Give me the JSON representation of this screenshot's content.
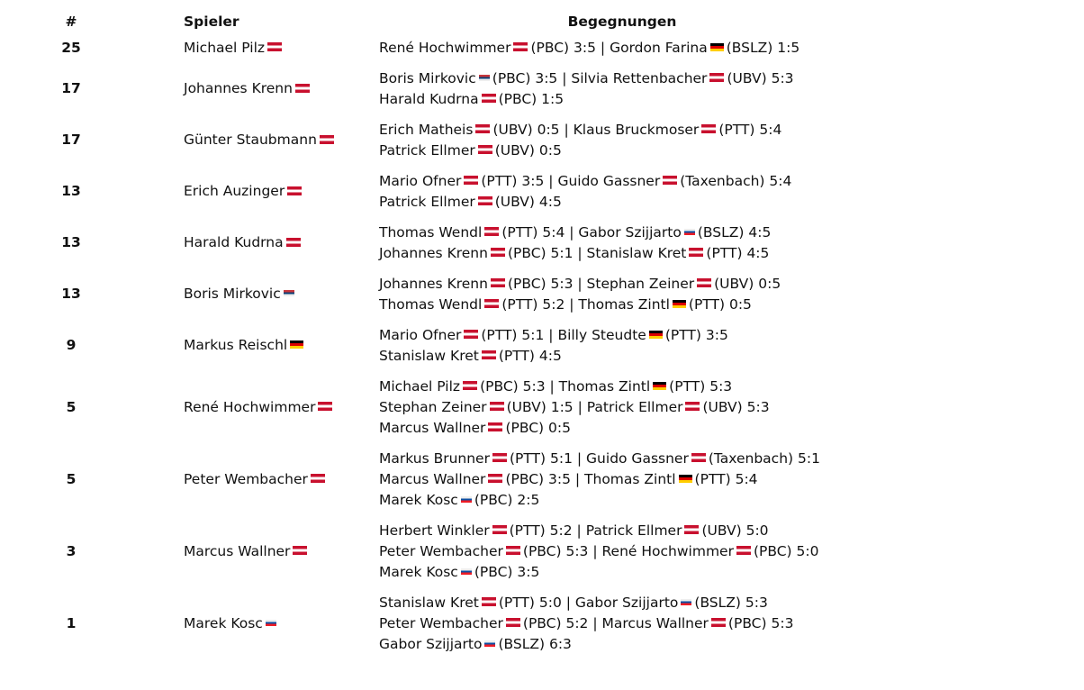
{
  "headers": {
    "rank": "#",
    "player": "Spieler",
    "matches": "Begegnungen"
  },
  "flag_colors": {
    "at": [
      "#c8102e",
      "#ffffff",
      "#c8102e"
    ],
    "de": [
      "#000000",
      "#dd0000",
      "#ffce00"
    ],
    "rs": [
      "#c6363c",
      "#0c4076",
      "#eeeeee"
    ],
    "sk": [
      "#eeeeee",
      "#0b4ea2",
      "#ee1c25"
    ]
  },
  "rows": [
    {
      "rank": "25",
      "name": "Michael Pilz",
      "flag": "at",
      "lines": [
        [
          {
            "name": "René Hochwimmer",
            "flag": "at",
            "club": "(PBC)",
            "score": "3:5"
          },
          {
            "name": "Gordon Farina",
            "flag": "de",
            "club": "(BSLZ)",
            "score": "1:5"
          }
        ]
      ]
    },
    {
      "rank": "17",
      "name": "Johannes Krenn",
      "flag": "at",
      "lines": [
        [
          {
            "name": "Boris Mirkovic",
            "flag": "rs",
            "club": "(PBC)",
            "score": "3:5"
          },
          {
            "name": "Silvia Rettenbacher",
            "flag": "at",
            "club": "(UBV)",
            "score": "5:3"
          }
        ],
        [
          {
            "name": "Harald Kudrna",
            "flag": "at",
            "club": "(PBC)",
            "score": "1:5"
          }
        ]
      ]
    },
    {
      "rank": "17",
      "name": "Günter Staubmann",
      "flag": "at",
      "lines": [
        [
          {
            "name": "Erich Matheis",
            "flag": "at",
            "club": "(UBV)",
            "score": "0:5"
          },
          {
            "name": "Klaus Bruckmoser",
            "flag": "at",
            "club": "(PTT)",
            "score": "5:4"
          }
        ],
        [
          {
            "name": "Patrick Ellmer",
            "flag": "at",
            "club": "(UBV)",
            "score": "0:5"
          }
        ]
      ]
    },
    {
      "rank": "13",
      "name": "Erich Auzinger",
      "flag": "at",
      "lines": [
        [
          {
            "name": "Mario Ofner",
            "flag": "at",
            "club": "(PTT)",
            "score": "3:5"
          },
          {
            "name": "Guido Gassner",
            "flag": "at",
            "club": "(Taxenbach)",
            "score": "5:4"
          }
        ],
        [
          {
            "name": "Patrick Ellmer",
            "flag": "at",
            "club": "(UBV)",
            "score": "4:5"
          }
        ]
      ]
    },
    {
      "rank": "13",
      "name": "Harald Kudrna",
      "flag": "at",
      "lines": [
        [
          {
            "name": "Thomas Wendl",
            "flag": "at",
            "club": "(PTT)",
            "score": "5:4"
          },
          {
            "name": "Gabor Szijjarto",
            "flag": "sk",
            "club": "(BSLZ)",
            "score": "4:5"
          }
        ],
        [
          {
            "name": "Johannes Krenn",
            "flag": "at",
            "club": "(PBC)",
            "score": "5:1"
          },
          {
            "name": "Stanislaw Kret",
            "flag": "at",
            "club": "(PTT)",
            "score": "4:5"
          }
        ]
      ]
    },
    {
      "rank": "13",
      "name": "Boris Mirkovic",
      "flag": "rs",
      "lines": [
        [
          {
            "name": "Johannes Krenn",
            "flag": "at",
            "club": "(PBC)",
            "score": "5:3"
          },
          {
            "name": "Stephan Zeiner",
            "flag": "at",
            "club": "(UBV)",
            "score": "0:5"
          }
        ],
        [
          {
            "name": "Thomas Wendl",
            "flag": "at",
            "club": "(PTT)",
            "score": "5:2"
          },
          {
            "name": "Thomas Zintl",
            "flag": "de",
            "club": "(PTT)",
            "score": "0:5"
          }
        ]
      ]
    },
    {
      "rank": "9",
      "name": "Markus Reischl",
      "flag": "de",
      "lines": [
        [
          {
            "name": "Mario Ofner",
            "flag": "at",
            "club": "(PTT)",
            "score": "5:1"
          },
          {
            "name": "Billy Steudte",
            "flag": "de",
            "club": "(PTT)",
            "score": "3:5"
          }
        ],
        [
          {
            "name": "Stanislaw Kret",
            "flag": "at",
            "club": "(PTT)",
            "score": "4:5"
          }
        ]
      ]
    },
    {
      "rank": "5",
      "name": "René Hochwimmer",
      "flag": "at",
      "lines": [
        [
          {
            "name": "Michael Pilz",
            "flag": "at",
            "club": "(PBC)",
            "score": "5:3"
          },
          {
            "name": "Thomas Zintl",
            "flag": "de",
            "club": "(PTT)",
            "score": "5:3"
          }
        ],
        [
          {
            "name": "Stephan Zeiner",
            "flag": "at",
            "club": "(UBV)",
            "score": "1:5"
          },
          {
            "name": "Patrick Ellmer",
            "flag": "at",
            "club": "(UBV)",
            "score": "5:3"
          }
        ],
        [
          {
            "name": "Marcus Wallner",
            "flag": "at",
            "club": "(PBC)",
            "score": "0:5"
          }
        ]
      ]
    },
    {
      "rank": "5",
      "name": "Peter Wembacher",
      "flag": "at",
      "lines": [
        [
          {
            "name": "Markus Brunner",
            "flag": "at",
            "club": "(PTT)",
            "score": "5:1"
          },
          {
            "name": "Guido Gassner",
            "flag": "at",
            "club": "(Taxenbach)",
            "score": "5:1"
          }
        ],
        [
          {
            "name": "Marcus Wallner",
            "flag": "at",
            "club": "(PBC)",
            "score": "3:5"
          },
          {
            "name": "Thomas Zintl",
            "flag": "de",
            "club": "(PTT)",
            "score": "5:4"
          }
        ],
        [
          {
            "name": "Marek Kosc",
            "flag": "sk",
            "club": "(PBC)",
            "score": "2:5"
          }
        ]
      ]
    },
    {
      "rank": "3",
      "name": "Marcus Wallner",
      "flag": "at",
      "lines": [
        [
          {
            "name": "Herbert Winkler",
            "flag": "at",
            "club": "(PTT)",
            "score": "5:2"
          },
          {
            "name": "Patrick Ellmer",
            "flag": "at",
            "club": "(UBV)",
            "score": "5:0"
          }
        ],
        [
          {
            "name": "Peter Wembacher",
            "flag": "at",
            "club": "(PBC)",
            "score": "5:3"
          },
          {
            "name": "René Hochwimmer",
            "flag": "at",
            "club": "(PBC)",
            "score": "5:0"
          }
        ],
        [
          {
            "name": "Marek Kosc",
            "flag": "sk",
            "club": "(PBC)",
            "score": "3:5"
          }
        ]
      ]
    },
    {
      "rank": "1",
      "name": "Marek Kosc",
      "flag": "sk",
      "lines": [
        [
          {
            "name": "Stanislaw Kret",
            "flag": "at",
            "club": "(PTT)",
            "score": "5:0"
          },
          {
            "name": "Gabor Szijjarto",
            "flag": "sk",
            "club": "(BSLZ)",
            "score": "5:3"
          }
        ],
        [
          {
            "name": "Peter Wembacher",
            "flag": "at",
            "club": "(PBC)",
            "score": "5:2"
          },
          {
            "name": "Marcus Wallner",
            "flag": "at",
            "club": "(PBC)",
            "score": "5:3"
          }
        ],
        [
          {
            "name": "Gabor Szijjarto",
            "flag": "sk",
            "club": "(BSLZ)",
            "score": "6:3"
          }
        ]
      ]
    }
  ]
}
